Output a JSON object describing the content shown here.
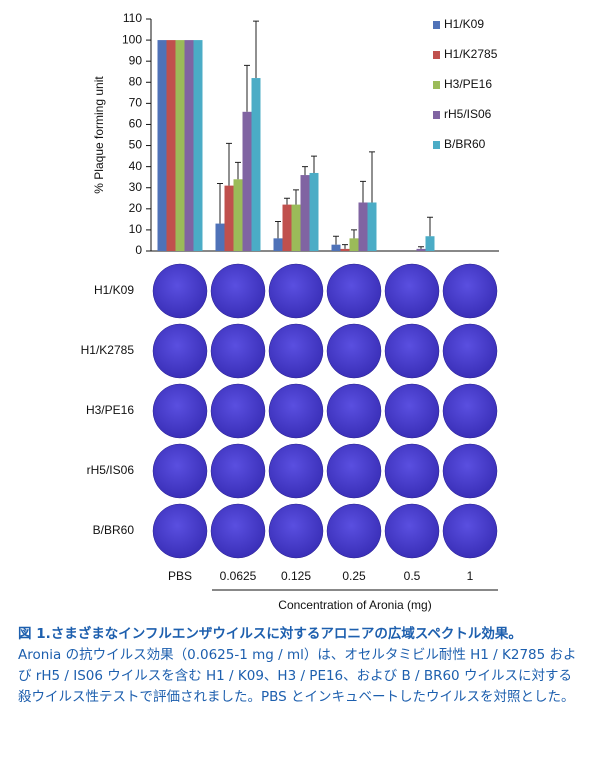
{
  "chart_data": {
    "type": "bar",
    "y_label": "% Plaque forming unit",
    "x_label": "Concentration of Aronia (mg)",
    "categories": [
      "PBS",
      "0.0625",
      "0.125",
      "0.25",
      "0.5",
      "1"
    ],
    "series": [
      {
        "name": "H1/K09",
        "color": "#4f72b8",
        "values": [
          100,
          13,
          6,
          3,
          0,
          0
        ],
        "errors": [
          null,
          19,
          8,
          4,
          null,
          null
        ]
      },
      {
        "name": "H1/K2785",
        "color": "#c0504d",
        "values": [
          100,
          31,
          22,
          1,
          0,
          0
        ],
        "errors": [
          null,
          20,
          3,
          2,
          null,
          null
        ]
      },
      {
        "name": "H3/PE16",
        "color": "#9bbb59",
        "values": [
          100,
          34,
          22,
          6,
          0,
          0
        ],
        "errors": [
          null,
          8,
          7,
          4,
          null,
          null
        ]
      },
      {
        "name": "rH5/IS06",
        "color": "#8064a2",
        "values": [
          100,
          66,
          36,
          23,
          1,
          0
        ],
        "errors": [
          null,
          22,
          4,
          10,
          1,
          null
        ]
      },
      {
        "name": "B/BR60",
        "color": "#4bacc6",
        "values": [
          100,
          82,
          37,
          23,
          7,
          0
        ],
        "errors": [
          null,
          27,
          8,
          24,
          9,
          null
        ]
      }
    ],
    "ylim": [
      0,
      110
    ],
    "yticks": [
      0,
      10,
      20,
      30,
      40,
      50,
      60,
      70,
      80,
      90,
      100,
      110
    ],
    "legend": "top-right"
  },
  "caption": {
    "title": "図 1.さまざまなインフルエンザウイルスに対するアロニアの広域スペクトル効果。",
    "body": "Aronia の抗ウイルス効果（0.0625-1 mg / ml）は、オセルタミビル耐性 H1 / K2785 および rH5 / IS06 ウイルスを含む H1 / K09、H3 / PE16、および B / BR60 ウイルスに対する殺ウイルス性テストで評価されました。PBS とインキュベートしたウイルスを対照とした。"
  }
}
